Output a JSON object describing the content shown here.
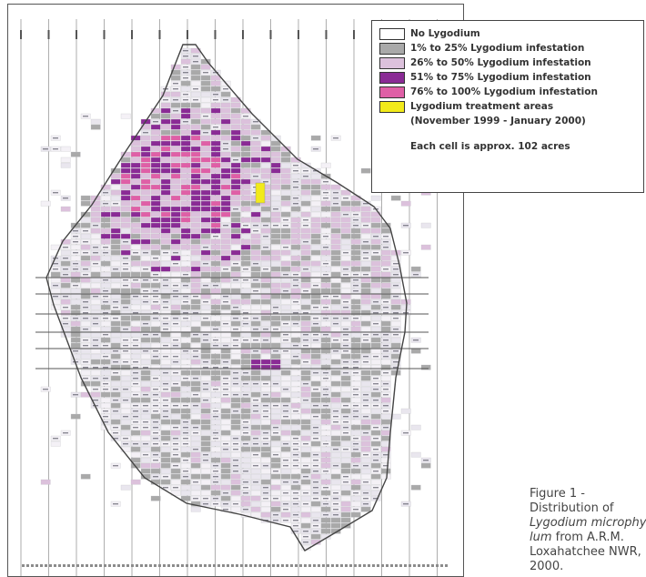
{
  "legend": {
    "items": [
      {
        "label": "No Lygodium",
        "color": "#ffffff"
      },
      {
        "label": "1% to 25% Lygodium infestation",
        "color": "#a9a9a9"
      },
      {
        "label": "26% to 50% Lygodium infestation",
        "color": "#dcc1dc"
      },
      {
        "label": "51% to 75% Lygodium infestation",
        "color": "#8a2b95"
      },
      {
        "label": "76% to 100% Lygodium infestation",
        "color": "#df5fa6"
      },
      {
        "label": "Lygodium treatment areas",
        "color": "#f2ea1a"
      }
    ],
    "treatment_period": "(November 1999 - January 2000)",
    "cell_note": "Each cell is approx. 102 acres"
  },
  "caption": {
    "line1": "Figure 1 -",
    "line2": "Distribution of",
    "species_line1": "Lygodium microphyl-",
    "species_line2": "lum",
    "line3_rest": " from A.R.M.",
    "line4": "Loxahatchee NWR,",
    "line5": "2000."
  }
}
